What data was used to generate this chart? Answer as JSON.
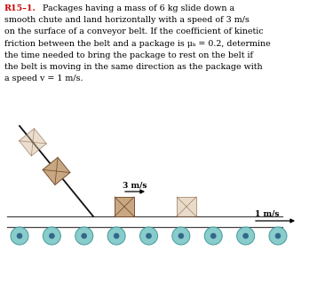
{
  "bg_color": "#ffffff",
  "text_color": "#000000",
  "title_label": "R15–1.",
  "title_color": "#cc0000",
  "box_face_color": "#c8a882",
  "box_face_ghost": "#d8bfa0",
  "box_edge_color": "#7a5030",
  "box_diag_color": "#7a5030",
  "chute_color": "#111111",
  "belt_color": "#444444",
  "roller_face": "#88cccc",
  "roller_edge": "#449999",
  "roller_dot": "#336688",
  "arrow_color": "#000000",
  "speed_label_3": "3 m/s",
  "speed_label_1": "1 m/s",
  "lines": [
    "  Packages having a mass of 6 kg slide down a",
    "smooth chute and land horizontally with a speed of 3 m/s",
    "on the surface of a conveyor belt. If the coefficient of kinetic",
    "friction between the belt and a package is μₖ = 0.2, determine",
    "the time needed to bring the package to rest on the belt if",
    "the belt is moving in the same direction as the package with",
    "a speed v = 1 m/s."
  ],
  "figsize": [
    3.66,
    3.27
  ],
  "dpi": 100
}
